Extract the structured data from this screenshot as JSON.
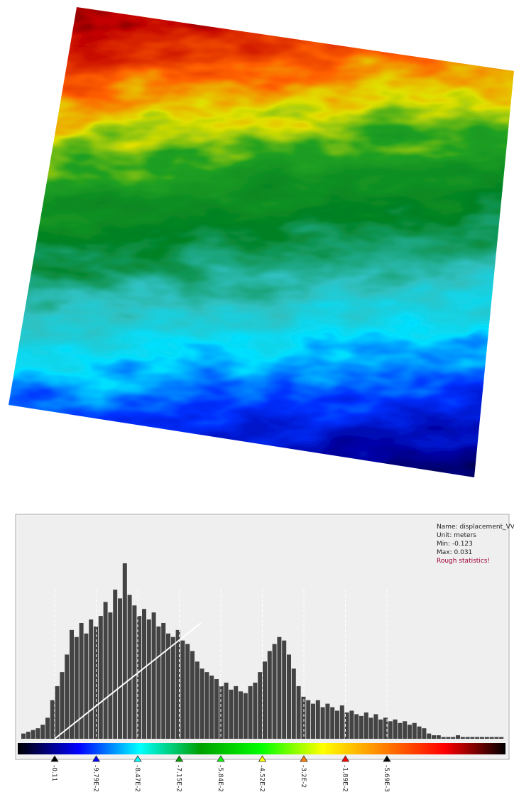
{
  "stats": {
    "name": "Name: displacement_VV",
    "unit": "Unit: meters",
    "min": "Min: -0.123",
    "max": "Max: 0.031",
    "note": "Rough statistics!"
  },
  "colorbar": {
    "ticks": [
      "-0.11",
      "-9.79E-2",
      "-8.47E-2",
      "-7.15E-2",
      "-5.84E-2",
      "-4.52E-2",
      "-3.2E-2",
      "-1.89E-2",
      "-5.69E-3"
    ],
    "colors": [
      "#000000",
      "#0000ff",
      "#00ffff",
      "#00a000",
      "#00ff00",
      "#ffff00",
      "#ff8000",
      "#ff0000",
      "#000000"
    ]
  },
  "histogram": {
    "counts": [
      3,
      4,
      5,
      6,
      8,
      12,
      22,
      30,
      38,
      48,
      62,
      58,
      66,
      60,
      68,
      64,
      70,
      78,
      72,
      85,
      80,
      100,
      82,
      76,
      70,
      74,
      68,
      72,
      64,
      66,
      60,
      58,
      62,
      56,
      54,
      50,
      44,
      40,
      38,
      36,
      34,
      30,
      32,
      28,
      30,
      27,
      26,
      30,
      32,
      38,
      44,
      50,
      54,
      58,
      56,
      48,
      40,
      30,
      24,
      22,
      20,
      22,
      18,
      20,
      18,
      16,
      19,
      15,
      16,
      14,
      13,
      15,
      12,
      14,
      11,
      12,
      10,
      11,
      9,
      10,
      8,
      9,
      7,
      6,
      3,
      2,
      2,
      1,
      1,
      1,
      2,
      1,
      1,
      1,
      1,
      1,
      1,
      1,
      1,
      1
    ]
  }
}
